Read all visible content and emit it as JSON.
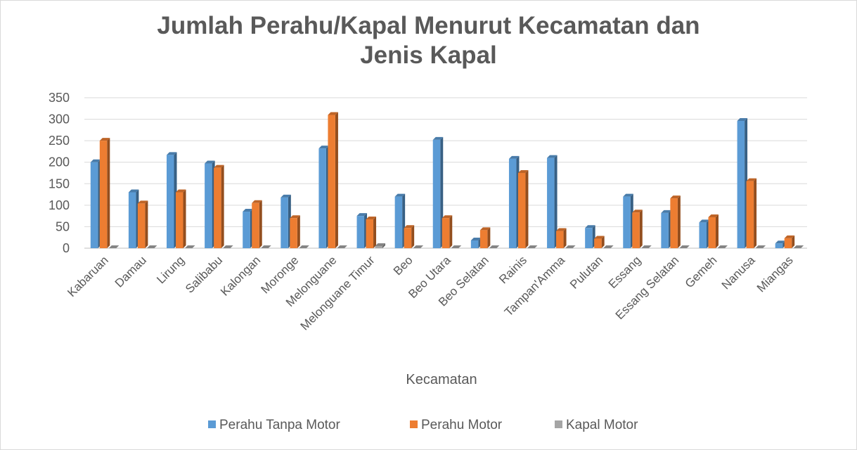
{
  "chart_data": {
    "type": "bar",
    "title_lines": [
      "Jumlah Perahu/Kapal Menurut Kecamatan dan",
      "Jenis Kapal"
    ],
    "xlabel": "Kecamatan",
    "ylabel": "",
    "ylim": [
      0,
      350
    ],
    "yticks": [
      0,
      50,
      100,
      150,
      200,
      250,
      300,
      350
    ],
    "grid": true,
    "legend_position": "bottom",
    "categories": [
      "Kabaruan",
      "Damau",
      "Lirung",
      "Salibabu",
      "Kalongan",
      "Moronge",
      "Melonguane",
      "Melonguane Timur",
      "Beo",
      "Beo Utara",
      "Beo Selatan",
      "Rainis",
      "Tampan'Amma",
      "Pulutan",
      "Essang",
      "Essang Selatan",
      "Gemeh",
      "Nanusa",
      "Miangas"
    ],
    "series": [
      {
        "name": "Perahu Tanpa Motor",
        "color": "#5b9bd5",
        "values": [
          200,
          130,
          217,
          197,
          85,
          118,
          232,
          75,
          120,
          252,
          18,
          208,
          210,
          47,
          120,
          82,
          60,
          296,
          11
        ]
      },
      {
        "name": "Perahu Motor",
        "color": "#ed7d31",
        "values": [
          250,
          104,
          130,
          187,
          105,
          70,
          310,
          67,
          47,
          70,
          42,
          175,
          40,
          22,
          83,
          116,
          72,
          156,
          23
        ]
      },
      {
        "name": "Kapal Motor",
        "color": "#a5a5a5",
        "values": [
          0,
          0,
          0,
          0,
          0,
          0,
          0,
          5,
          0,
          0,
          0,
          0,
          0,
          0,
          0,
          0,
          0,
          0,
          0
        ]
      }
    ]
  }
}
